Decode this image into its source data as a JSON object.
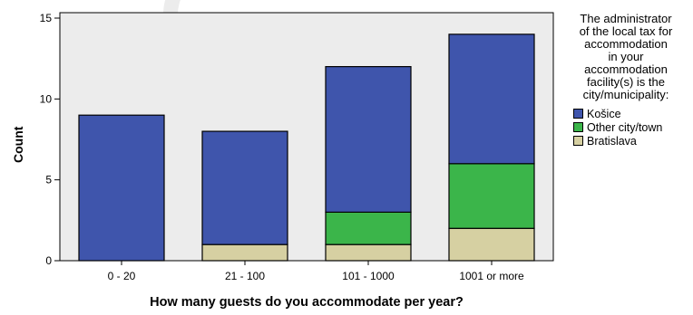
{
  "chart_data": {
    "type": "bar",
    "stacked": true,
    "categories": [
      "0 - 20",
      "21 - 100",
      "101 - 1000",
      "1001 or more"
    ],
    "series": [
      {
        "name": "Bratislava",
        "values": [
          0,
          1,
          1,
          2
        ],
        "color": "#d6d0a2"
      },
      {
        "name": "Other city/town",
        "values": [
          0,
          0,
          2,
          4
        ],
        "color": "#3bb54a"
      },
      {
        "name": "Košice",
        "values": [
          9,
          7,
          9,
          8
        ],
        "color": "#3f55ac"
      }
    ],
    "xlabel": "How many guests do you accommodate per year?",
    "ylabel": "Count",
    "ylim": [
      0,
      15
    ],
    "yticks": [
      0,
      5,
      10,
      15
    ],
    "grid": false,
    "plot_background": "#ececec",
    "legend": {
      "title": "The administrator\nof the local tax for\naccommodation\nin your\naccommodation\nfacility(s) is the\ncity/municipality:",
      "order": [
        "Košice",
        "Other city/town",
        "Bratislava"
      ],
      "placement": "right"
    }
  }
}
